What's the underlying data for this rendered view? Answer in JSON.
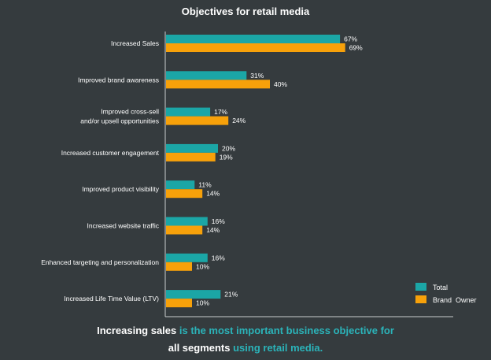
{
  "chart_data": {
    "type": "bar",
    "orientation": "horizontal",
    "title": "Objectives for retail media",
    "categories": [
      [
        "Increased Sales"
      ],
      [
        "Improved brand awareness"
      ],
      [
        "Improved cross-sell",
        "and/or upsell opportunities"
      ],
      [
        "Increased customer engagement"
      ],
      [
        "Improved product visibility"
      ],
      [
        "Increased website traffic"
      ],
      [
        "Enhanced targeting and personalization"
      ],
      [
        "Increased Life Time Value (LTV)"
      ]
    ],
    "series": [
      {
        "name": "Total",
        "color": "#1ba6a6",
        "values": [
          67,
          31,
          17,
          20,
          11,
          16,
          16,
          21
        ]
      },
      {
        "name": "Brand  Owner",
        "color": "#f7a10a",
        "values": [
          69,
          40,
          24,
          19,
          14,
          14,
          10,
          10
        ]
      }
    ],
    "value_suffix": "%",
    "xlim": [
      0,
      100
    ],
    "grid": false,
    "legend_position": "bottom-right"
  },
  "caption": {
    "line1_white": "Increasing sales",
    "line1_accent": " is the most important business objective for",
    "line2_white": "all segments",
    "line2_accent": " using retail media."
  }
}
